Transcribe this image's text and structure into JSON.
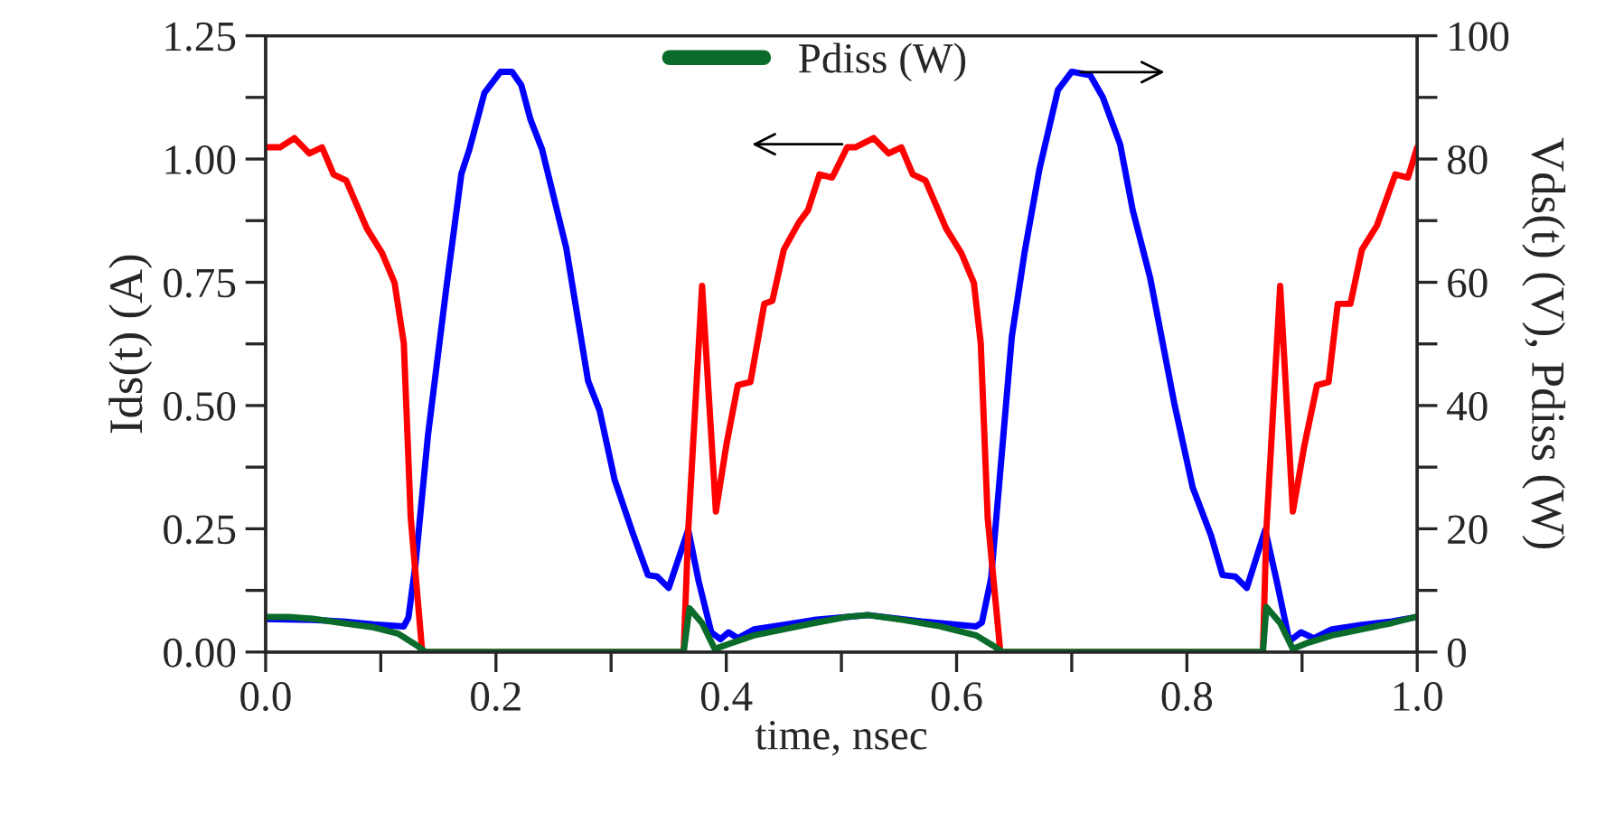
{
  "chart_data": {
    "type": "line",
    "xlabel": "time, nsec",
    "ylabel": "Ids(t) (A)",
    "y2label": "Vds(t) (V), Pdiss (W)",
    "xlim": [
      0,
      1.0
    ],
    "ylim": [
      0,
      1.25
    ],
    "y2lim": [
      0,
      100
    ],
    "xticks": [
      {
        "value": 0,
        "label": "0.0"
      },
      {
        "value": 0.1,
        "label": null
      },
      {
        "value": 0.2,
        "label": "0.2"
      },
      {
        "value": 0.3,
        "label": null
      },
      {
        "value": 0.4,
        "label": "0.4"
      },
      {
        "value": 0.5,
        "label": null
      },
      {
        "value": 0.6,
        "label": "0.6"
      },
      {
        "value": 0.7,
        "label": null
      },
      {
        "value": 0.8,
        "label": "0.8"
      },
      {
        "value": 0.9,
        "label": null
      },
      {
        "value": 1.0,
        "label": "1.0"
      }
    ],
    "yticks": [
      {
        "value": 0,
        "label": "0.00"
      },
      {
        "value": 0.125,
        "label": null
      },
      {
        "value": 0.25,
        "label": "0.25"
      },
      {
        "value": 0.375,
        "label": null
      },
      {
        "value": 0.5,
        "label": "0.50"
      },
      {
        "value": 0.625,
        "label": null
      },
      {
        "value": 0.75,
        "label": "0.75"
      },
      {
        "value": 0.875,
        "label": null
      },
      {
        "value": 1.0,
        "label": "1.00"
      },
      {
        "value": 1.125,
        "label": null
      },
      {
        "value": 1.25,
        "label": "1.25"
      }
    ],
    "y2ticks": [
      0,
      {
        "value": 10,
        "label": null
      },
      20,
      {
        "value": 30,
        "label": null
      },
      40,
      {
        "value": 50,
        "label": null
      },
      60,
      {
        "value": 70,
        "label": null
      },
      80,
      {
        "value": 90,
        "label": null
      },
      100
    ],
    "grid": false,
    "legend": "top",
    "marker": "none",
    "line_style": "solid",
    "series": [
      {
        "color": "#0000ff",
        "axis": "y",
        "x": [
          0,
          0.041,
          0.067,
          0.094,
          0.12,
          0.124,
          0.13,
          0.141,
          0.157,
          0.17,
          0.177,
          0.19,
          0.204,
          0.214,
          0.222,
          0.23,
          0.24,
          0.261,
          0.28,
          0.29,
          0.303,
          0.319,
          0.332,
          0.34,
          0.35,
          0.367,
          0.376,
          0.387,
          0.395,
          0.402,
          0.41,
          0.424,
          0.45,
          0.476,
          0.505,
          0.523,
          0.57,
          0.617,
          0.622,
          0.63,
          0.648,
          0.659,
          0.672,
          0.688,
          0.7,
          0.716,
          0.727,
          0.742,
          0.753,
          0.768,
          0.789,
          0.805,
          0.821,
          0.831,
          0.842,
          0.852,
          0.868,
          0.878,
          0.889,
          0.899,
          0.91,
          0.926,
          0.952,
          0.978,
          0.999
        ],
        "values": [
          0.067,
          0.065,
          0.062,
          0.056,
          0.052,
          0.07,
          0.175,
          0.44,
          0.74,
          0.97,
          1.02,
          1.134,
          1.177,
          1.177,
          1.15,
          1.08,
          1.02,
          0.82,
          0.55,
          0.49,
          0.35,
          0.24,
          0.156,
          0.153,
          0.13,
          0.248,
          0.144,
          0.04,
          0.026,
          0.04,
          0.028,
          0.046,
          0.055,
          0.065,
          0.071,
          0.075,
          0.062,
          0.052,
          0.06,
          0.15,
          0.64,
          0.81,
          0.98,
          1.14,
          1.177,
          1.17,
          1.125,
          1.03,
          0.896,
          0.76,
          0.505,
          0.334,
          0.236,
          0.156,
          0.153,
          0.13,
          0.248,
          0.144,
          0.022,
          0.04,
          0.028,
          0.046,
          0.055,
          0.062,
          0.071
        ]
      },
      {
        "color": "#ff0000",
        "axis": "y2",
        "x": [
          0,
          0.0125,
          0.025,
          0.038,
          0.049,
          0.059,
          0.07,
          0.088,
          0.101,
          0.112,
          0.12,
          0.126,
          0.136,
          0.363,
          0.367,
          0.379,
          0.391,
          0.4,
          0.41,
          0.421,
          0.433,
          0.44,
          0.45,
          0.463,
          0.471,
          0.481,
          0.492,
          0.505,
          0.512,
          0.528,
          0.541,
          0.552,
          0.562,
          0.573,
          0.591,
          0.604,
          0.615,
          0.621,
          0.627,
          0.638,
          0.866,
          0.869,
          0.881,
          0.892,
          0.902,
          0.913,
          0.923,
          0.931,
          0.942,
          0.952,
          0.965,
          0.981,
          0.992,
          1.0
        ],
        "values": [
          81.9,
          81.9,
          83.4,
          80.9,
          81.9,
          77.5,
          76.5,
          68.7,
          64.8,
          59.9,
          50.1,
          21.8,
          0,
          0,
          19.8,
          59.4,
          22.8,
          33.5,
          43.3,
          43.8,
          56.5,
          57,
          65.3,
          69.7,
          71.7,
          77.5,
          77,
          81.9,
          81.9,
          83.4,
          80.9,
          81.9,
          77.5,
          76.5,
          68.7,
          64.8,
          59.9,
          50.1,
          21.8,
          0,
          0,
          19.8,
          59.4,
          22.8,
          33.5,
          43.3,
          43.8,
          56.5,
          56.5,
          65.3,
          69.2,
          77.5,
          77,
          81.9
        ]
      },
      {
        "name": "Pdiss (W)",
        "color": "#0a6b2a",
        "axis": "y2",
        "x": [
          0,
          0.02,
          0.041,
          0.067,
          0.094,
          0.115,
          0.131,
          0.139,
          0.363,
          0.368,
          0.379,
          0.39,
          0.402,
          0.424,
          0.45,
          0.476,
          0.505,
          0.523,
          0.554,
          0.585,
          0.617,
          0.632,
          0.64,
          0.866,
          0.869,
          0.881,
          0.892,
          0.905,
          0.926,
          0.952,
          0.978,
          0.999
        ],
        "values": [
          5.7,
          5.7,
          5.4,
          4.7,
          4.0,
          3.0,
          1.1,
          0,
          0,
          7.1,
          4.7,
          0.5,
          1.3,
          2.7,
          3.7,
          4.7,
          5.7,
          6.0,
          5.2,
          4.2,
          2.7,
          1.0,
          0,
          0,
          7.3,
          4.7,
          0.5,
          1.5,
          2.7,
          3.7,
          4.7,
          5.7
        ]
      }
    ]
  }
}
